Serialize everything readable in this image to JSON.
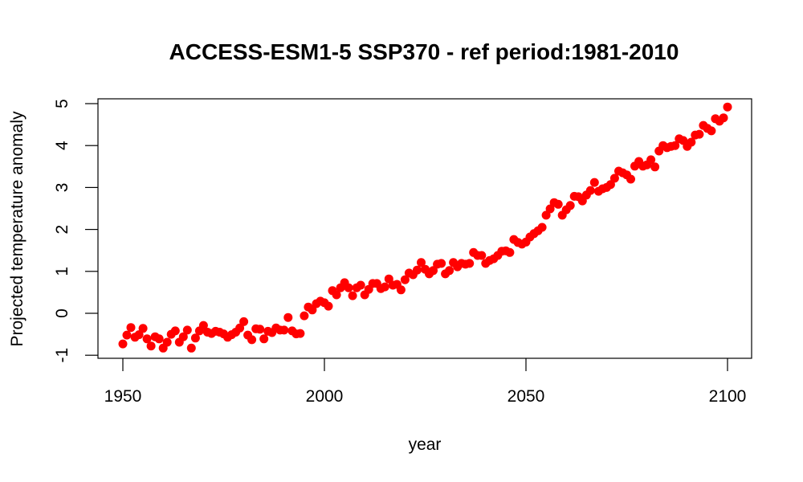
{
  "chart_data": {
    "type": "scatter",
    "title": "ACCESS-ESM1-5 SSP370 - ref period:1981-2010",
    "xlabel": "year",
    "ylabel": "Projected temperature anomaly",
    "xlim": [
      1946.5,
      2106
    ],
    "ylim": [
      -1.1,
      5.1
    ],
    "xticks": [
      1950,
      2000,
      2050,
      2100
    ],
    "xtick_labels": [
      "1950",
      "2000",
      "2050",
      "2100"
    ],
    "yticks": [
      -1,
      0,
      1,
      2,
      3,
      4,
      5
    ],
    "ytick_labels": [
      "-1",
      "0",
      "1",
      "2",
      "3",
      "4",
      "5"
    ],
    "grid": false,
    "legend": "none",
    "marker_color": "#ff0000",
    "series": [
      {
        "name": "anomaly",
        "x_start": 1950,
        "x_end": 2100,
        "values": [
          -0.73,
          -0.52,
          -0.34,
          -0.57,
          -0.51,
          -0.36,
          -0.61,
          -0.78,
          -0.56,
          -0.61,
          -0.83,
          -0.69,
          -0.5,
          -0.42,
          -0.69,
          -0.56,
          -0.4,
          -0.83,
          -0.59,
          -0.42,
          -0.29,
          -0.45,
          -0.48,
          -0.43,
          -0.45,
          -0.49,
          -0.57,
          -0.51,
          -0.45,
          -0.35,
          -0.2,
          -0.52,
          -0.63,
          -0.37,
          -0.38,
          -0.61,
          -0.43,
          -0.46,
          -0.35,
          -0.4,
          -0.4,
          -0.1,
          -0.42,
          -0.49,
          -0.48,
          -0.06,
          0.15,
          0.08,
          0.23,
          0.29,
          0.25,
          0.17,
          0.54,
          0.44,
          0.61,
          0.73,
          0.61,
          0.42,
          0.61,
          0.67,
          0.44,
          0.57,
          0.71,
          0.71,
          0.59,
          0.63,
          0.82,
          0.67,
          0.69,
          0.56,
          0.8,
          0.96,
          0.92,
          1.03,
          1.21,
          1.05,
          0.94,
          1.02,
          1.17,
          1.19,
          0.94,
          1.02,
          1.21,
          1.11,
          1.19,
          1.17,
          1.19,
          1.45,
          1.38,
          1.38,
          1.19,
          1.26,
          1.3,
          1.38,
          1.48,
          1.49,
          1.45,
          1.76,
          1.69,
          1.65,
          1.7,
          1.82,
          1.9,
          1.97,
          2.05,
          2.34,
          2.49,
          2.64,
          2.6,
          2.34,
          2.47,
          2.57,
          2.79,
          2.78,
          2.68,
          2.82,
          2.93,
          3.12,
          2.91,
          2.97,
          3.0,
          3.07,
          3.22,
          3.39,
          3.35,
          3.3,
          3.2,
          3.51,
          3.62,
          3.51,
          3.54,
          3.66,
          3.49,
          3.87,
          4.0,
          3.95,
          3.98,
          4.0,
          4.16,
          4.12,
          3.98,
          4.08,
          4.25,
          4.27,
          4.48,
          4.41,
          4.35,
          4.64,
          4.58,
          4.66,
          4.92
        ]
      }
    ]
  }
}
